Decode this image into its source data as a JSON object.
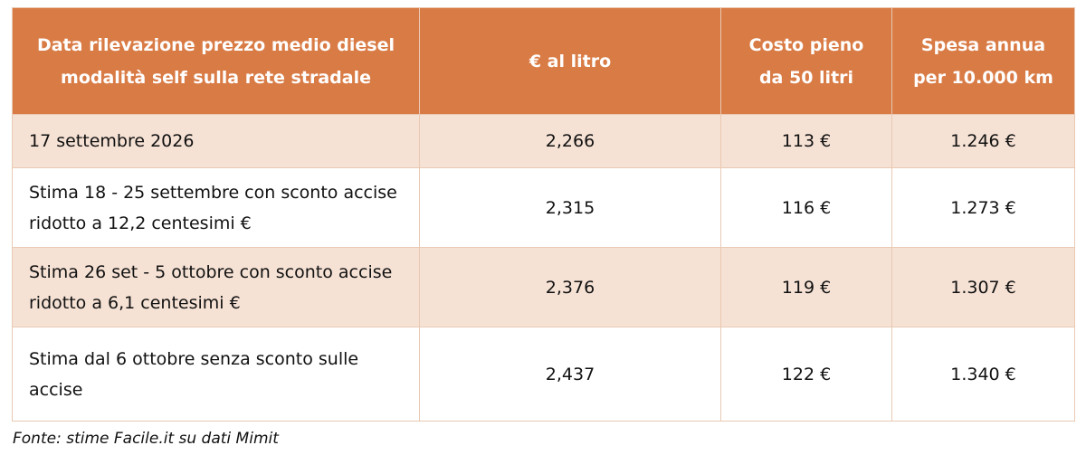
{
  "table": {
    "header": [
      "Data rilevazione prezzo medio diesel modalità self sulla rete stradale",
      "€ al litro",
      "Costo pieno da 50 litri",
      "Spesa annua per 10.000 km"
    ],
    "rows": [
      [
        "17 settembre 2026",
        "2,266",
        "113 €",
        "1.246 €"
      ],
      [
        "Stima 18 - 25 settembre con sconto accise ridotto a 12,2 centesimi €",
        "2,315",
        "116 €",
        "1.273 €"
      ],
      [
        "Stima 26 set - 5 ottobre con sconto accise ridotto a 6,1 centesimi €",
        "2,376",
        "119 €",
        "1.307 €"
      ],
      [
        "Stima dal 6 ottobre senza sconto sulle accise",
        "2,437",
        "122 €",
        "1.340 €"
      ]
    ]
  },
  "footer": "Fonte: stime Facile.it su dati Mimit"
}
